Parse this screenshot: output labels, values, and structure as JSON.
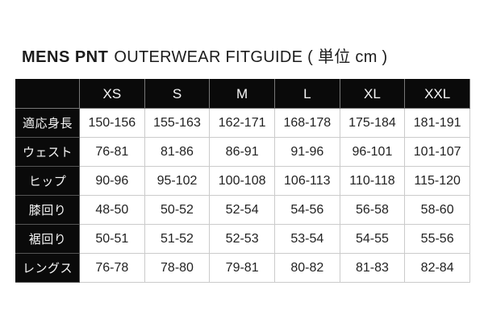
{
  "page": {
    "title": {
      "bold": "MENS PNT",
      "regular": "OUTERWEAR FITGUIDE ( 単位 cm )"
    }
  },
  "size_table": {
    "corner_label": "",
    "columns": [
      "XS",
      "S",
      "M",
      "L",
      "XL",
      "XXL"
    ],
    "rows": [
      {
        "label": "適応身長",
        "values": [
          "150-156",
          "155-163",
          "162-171",
          "168-178",
          "175-184",
          "181-191"
        ]
      },
      {
        "label": "ウェスト",
        "values": [
          "76-81",
          "81-86",
          "86-91",
          "91-96",
          "96-101",
          "101-107"
        ]
      },
      {
        "label": "ヒップ",
        "values": [
          "90-96",
          "95-102",
          "100-108",
          "106-113",
          "110-118",
          "115-120"
        ]
      },
      {
        "label": "膝回り",
        "values": [
          "48-50",
          "50-52",
          "52-54",
          "54-56",
          "56-58",
          "58-60"
        ]
      },
      {
        "label": "裾回り",
        "values": [
          "50-51",
          "51-52",
          "52-53",
          "53-54",
          "54-55",
          "55-56"
        ]
      },
      {
        "label": "レングス",
        "values": [
          "76-78",
          "78-80",
          "79-81",
          "80-82",
          "81-83",
          "82-84"
        ]
      }
    ]
  },
  "colors": {
    "header_background": "#0a0a0a",
    "header_text": "#f7f7f7",
    "cell_background": "#ffffff",
    "cell_text": "#222222",
    "grid_border": "#cbcbcb",
    "page_background": "#ffffff"
  }
}
